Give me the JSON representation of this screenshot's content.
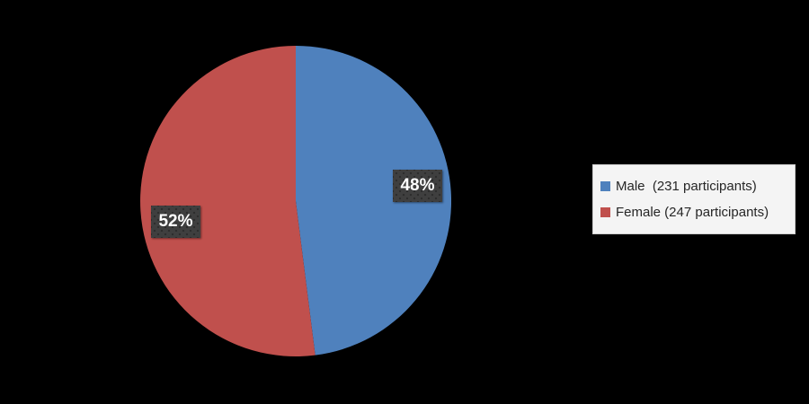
{
  "chart_data": {
    "type": "pie",
    "title": "",
    "background": "#000000",
    "start_angle_deg": 0,
    "direction": "clockwise",
    "legend_position": "right",
    "slices": [
      {
        "name": "Male",
        "value": 48,
        "participants": 231,
        "label": "48%",
        "legend_label": "Male  (231 participants)",
        "color": "#4F81BD"
      },
      {
        "name": "Female",
        "value": 52,
        "participants": 247,
        "label": "52%",
        "legend_label": "Female (247 participants)",
        "color": "#C0504D"
      }
    ],
    "data_label_style": {
      "bg": "#3F3F3F",
      "text_color": "#FFFFFF"
    },
    "legend_style": {
      "bg": "#F4F4F4",
      "border": "#CFCFCF",
      "text_color": "#262626"
    }
  }
}
